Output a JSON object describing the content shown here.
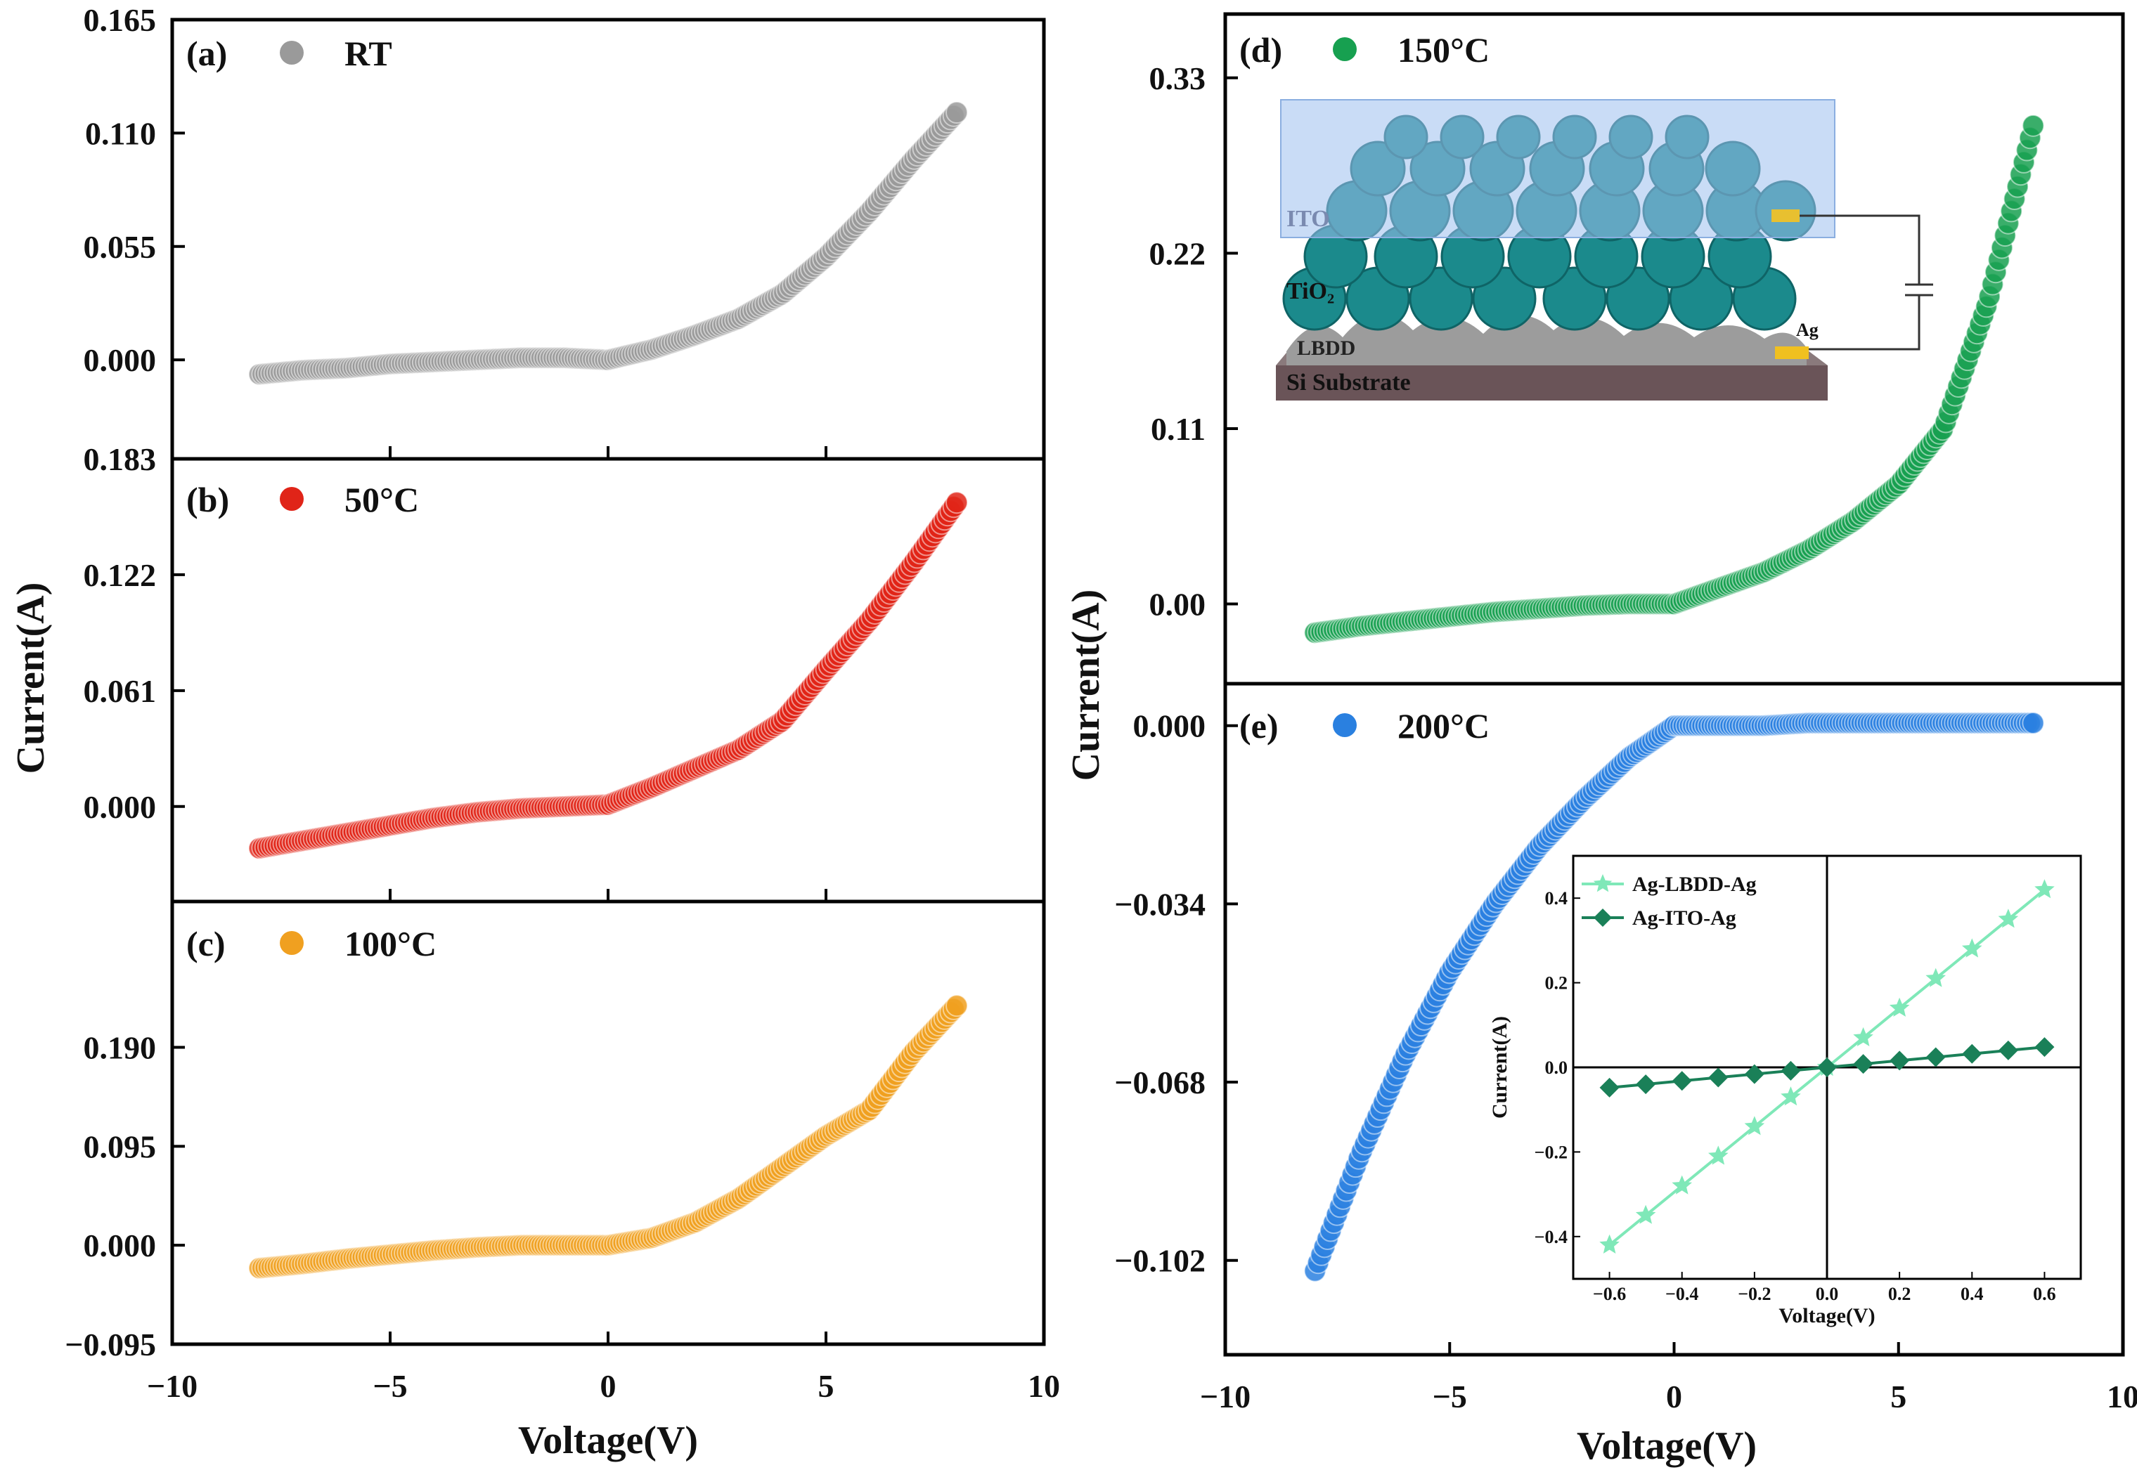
{
  "figure": {
    "left_xlabel": "Voltage(V)",
    "right_xlabel": "Voltage(V)",
    "left_ylabel": "Current(A)",
    "right_ylabel": "Current(A)"
  },
  "chart_data": [
    {
      "id": "a",
      "type": "scatter",
      "label": "(a)",
      "legend": "RT",
      "color": "#9a9a9a",
      "xlim": [
        -10,
        10
      ],
      "ylim": [
        -0.048,
        0.165
      ],
      "yticks": [
        "0.000",
        "0.055",
        "0.110",
        "0.165"
      ],
      "ytick_values": [
        0,
        0.055,
        0.11,
        0.165
      ],
      "xticks": [
        "−10",
        "−5",
        "0",
        "5",
        "10"
      ],
      "xtick_values": [
        -10,
        -5,
        0,
        5,
        10
      ],
      "x": [
        -8,
        -7,
        -6,
        -5,
        -4,
        -3,
        -2,
        -1,
        0,
        1,
        2,
        3,
        4,
        5,
        6,
        7,
        8
      ],
      "y": [
        -0.007,
        -0.005,
        -0.004,
        -0.002,
        -0.001,
        0.0,
        0.001,
        0.001,
        0.0,
        0.005,
        0.012,
        0.02,
        0.032,
        0.05,
        0.072,
        0.097,
        0.12
      ]
    },
    {
      "id": "b",
      "type": "scatter",
      "label": "(b)",
      "legend": "50°C",
      "color": "#e02418",
      "xlim": [
        -10,
        10
      ],
      "ylim": [
        -0.05,
        0.183
      ],
      "yticks": [
        "0.000",
        "0.061",
        "0.122",
        "0.183"
      ],
      "ytick_values": [
        0,
        0.061,
        0.122,
        0.183
      ],
      "xticks": [
        "−10",
        "−5",
        "0",
        "5",
        "10"
      ],
      "xtick_values": [
        -10,
        -5,
        0,
        5,
        10
      ],
      "x": [
        -8,
        -7,
        -6,
        -5,
        -4,
        -3,
        -2,
        -1,
        0,
        1,
        2,
        3,
        4,
        5,
        6,
        7,
        8
      ],
      "y": [
        -0.022,
        -0.018,
        -0.014,
        -0.01,
        -0.006,
        -0.003,
        -0.001,
        0.0,
        0.001,
        0.01,
        0.02,
        0.03,
        0.045,
        0.072,
        0.098,
        0.128,
        0.16
      ]
    },
    {
      "id": "c",
      "type": "scatter",
      "label": "(c)",
      "legend": "100°C",
      "color": "#f0a020",
      "xlim": [
        -10,
        10
      ],
      "ylim": [
        -0.095,
        0.33
      ],
      "yticks": [
        "−0.095",
        "0.000",
        "0.095",
        "0.190"
      ],
      "ytick_values": [
        -0.095,
        0,
        0.095,
        0.19
      ],
      "xticks": [
        "−10",
        "−5",
        "0",
        "5",
        "10"
      ],
      "xtick_values": [
        -10,
        -5,
        0,
        5,
        10
      ],
      "x": [
        -8,
        -7,
        -6,
        -5,
        -4,
        -3,
        -2,
        -1,
        0,
        1,
        2,
        3,
        4,
        5,
        6,
        7,
        8
      ],
      "y": [
        -0.022,
        -0.018,
        -0.013,
        -0.009,
        -0.005,
        -0.002,
        0.0,
        0.0,
        0.0,
        0.007,
        0.022,
        0.045,
        0.075,
        0.105,
        0.13,
        0.185,
        0.23
      ]
    },
    {
      "id": "d",
      "type": "scatter",
      "label": "(d)",
      "legend": "150°C",
      "color": "#17a050",
      "xlim": [
        -10,
        10
      ],
      "ylim": [
        -0.05,
        0.37
      ],
      "yticks": [
        "0.00",
        "0.11",
        "0.22",
        "0.33"
      ],
      "ytick_values": [
        0,
        0.11,
        0.22,
        0.33
      ],
      "xticks": [],
      "xtick_values": [],
      "x": [
        -8,
        -7,
        -6,
        -5,
        -4,
        -3,
        -2,
        -1,
        0,
        1,
        2,
        3,
        4,
        5,
        6,
        7,
        8
      ],
      "y": [
        -0.018,
        -0.014,
        -0.011,
        -0.008,
        -0.005,
        -0.003,
        -0.001,
        0.0,
        0.0,
        0.01,
        0.02,
        0.034,
        0.052,
        0.075,
        0.11,
        0.19,
        0.3
      ]
    },
    {
      "id": "e",
      "type": "scatter",
      "label": "(e)",
      "legend": "200°C",
      "color": "#2a80e0",
      "xlim": [
        -10,
        10
      ],
      "ylim": [
        -0.12,
        0.008
      ],
      "yticks": [
        "−0.102",
        "−0.068",
        "−0.034",
        "0.000"
      ],
      "ytick_values": [
        -0.102,
        -0.068,
        -0.034,
        0
      ],
      "xticks": [
        "−10",
        "−5",
        "0",
        "5",
        "10"
      ],
      "xtick_values": [
        -10,
        -5,
        0,
        5,
        10
      ],
      "x": [
        -8,
        -7,
        -6,
        -5,
        -4,
        -3,
        -2,
        -1,
        0,
        1,
        2,
        3,
        4,
        5,
        6,
        7,
        8
      ],
      "y": [
        -0.104,
        -0.082,
        -0.063,
        -0.047,
        -0.034,
        -0.023,
        -0.014,
        -0.006,
        0.0,
        0.0,
        0.0,
        0.0005,
        0.0005,
        0.0005,
        0.0005,
        0.0005,
        0.0005
      ]
    },
    {
      "id": "e-inset",
      "type": "line",
      "xlabel": "Voltage(V)",
      "ylabel": "Current(A)",
      "xlim": [
        -0.7,
        0.7
      ],
      "ylim": [
        -0.5,
        0.5
      ],
      "xticks": [
        "−0.6",
        "−0.4",
        "−0.2",
        "0.0",
        "0.2",
        "0.4",
        "0.6"
      ],
      "xtick_values": [
        -0.6,
        -0.4,
        -0.2,
        0,
        0.2,
        0.4,
        0.6
      ],
      "yticks": [
        "−0.4",
        "−0.2",
        "0.0",
        "0.2",
        "0.4"
      ],
      "ytick_values": [
        -0.4,
        -0.2,
        0,
        0.2,
        0.4
      ],
      "x": [
        -0.6,
        -0.5,
        -0.4,
        -0.3,
        -0.2,
        -0.1,
        0.0,
        0.1,
        0.2,
        0.3,
        0.4,
        0.5,
        0.6
      ],
      "series": [
        {
          "name": "Ag-LBDD-Ag",
          "color": "#7fe8b8",
          "marker": "star",
          "values": [
            -0.42,
            -0.35,
            -0.28,
            -0.21,
            -0.14,
            -0.07,
            0.0,
            0.07,
            0.14,
            0.21,
            0.28,
            0.35,
            0.42
          ]
        },
        {
          "name": "Ag-ITO-Ag",
          "color": "#1a8058",
          "marker": "diamond",
          "values": [
            -0.048,
            -0.04,
            -0.032,
            -0.024,
            -0.016,
            -0.008,
            0.0,
            0.008,
            0.016,
            0.024,
            0.032,
            0.04,
            0.048
          ]
        }
      ]
    }
  ],
  "schematic": {
    "labels": [
      "ITO",
      "TiO₂",
      "LBDD",
      "Si Substrate",
      "Ag"
    ]
  }
}
